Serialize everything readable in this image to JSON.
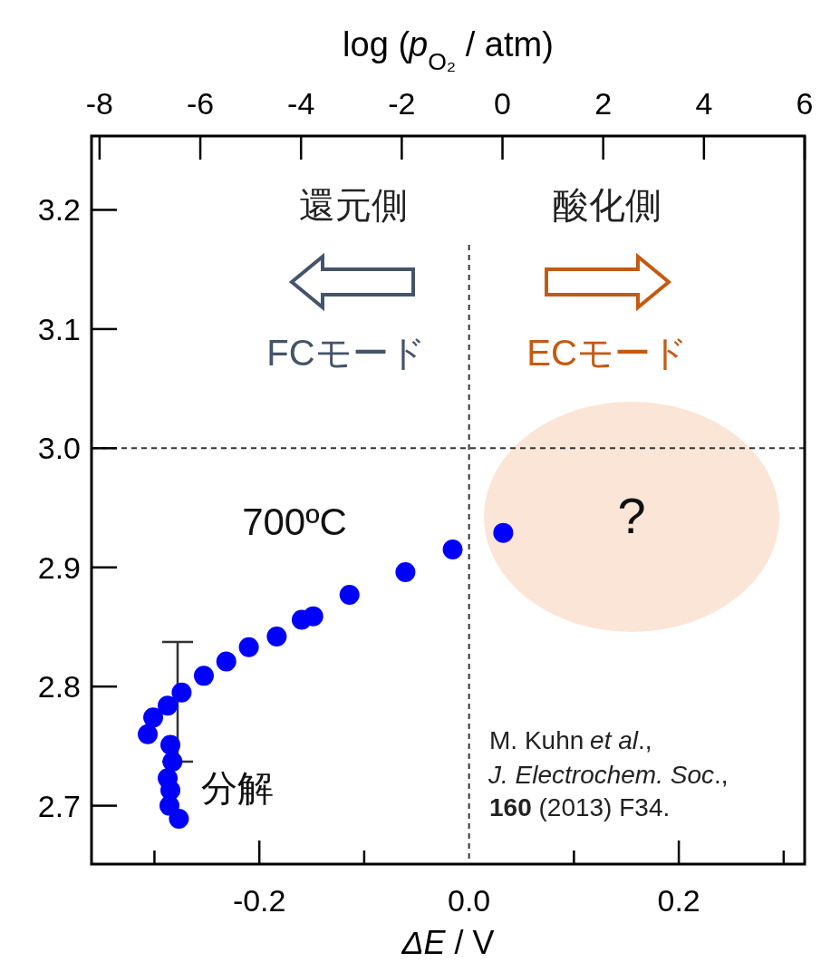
{
  "chart_data": {
    "type": "scatter",
    "xlabel": "*ΔE* / V",
    "x2label": "log (*p*$_{O₂}$ / atm)",
    "x": [
      0.0326,
      -0.0156,
      -0.0607,
      -0.114,
      -0.1486,
      -0.1596,
      -0.1834,
      -0.21,
      -0.2315,
      -0.2529,
      -0.2741,
      -0.2874,
      -0.3012,
      -0.3064,
      -0.2848,
      -0.2828,
      -0.2874,
      -0.2848,
      -0.2857,
      -0.2767
    ],
    "values": [
      2.929,
      2.915,
      2.896,
      2.877,
      2.859,
      2.856,
      2.842,
      2.833,
      2.821,
      2.809,
      2.795,
      2.784,
      2.774,
      2.76,
      2.751,
      2.737,
      2.723,
      2.713,
      2.7,
      2.689
    ],
    "color": "#0000ff",
    "marker": "circle",
    "xlim": [
      -0.36,
      0.32
    ],
    "xticks": [
      {
        "value": -0.3,
        "label": null
      },
      -0.2,
      {
        "value": -0.1,
        "label": null
      },
      {
        "value": 0,
        "label": "0.0"
      },
      {
        "value": 0.1,
        "label": null
      },
      0.2,
      {
        "value": 0.3,
        "label": null
      }
    ],
    "x2lim": [
      -8.16,
      6.0
    ],
    "x2ticks": [
      -8,
      -6,
      -4,
      -2,
      0,
      2,
      4,
      6
    ],
    "ylim": [
      2.651,
      3.262
    ],
    "yticks": [
      2.7,
      2.8,
      2.9,
      {
        "value": 3.0,
        "label": "3.0"
      },
      3.1,
      3.2
    ],
    "ref_lines": [
      {
        "axis": "y",
        "value": 3.0,
        "line_style": "dashed",
        "color": "#333333"
      },
      {
        "axis": "x",
        "value": 0,
        "line_style": "dashed",
        "color": "#333333"
      }
    ],
    "annotations": [
      "還元側",
      "酸化側",
      "FCモード",
      "ECモード",
      "700ºC",
      "?",
      "分解",
      "M. Kuhn *et al*.,",
      "*J. Electrochem. Soc*.,",
      "**160** (2013) F34."
    ]
  }
}
